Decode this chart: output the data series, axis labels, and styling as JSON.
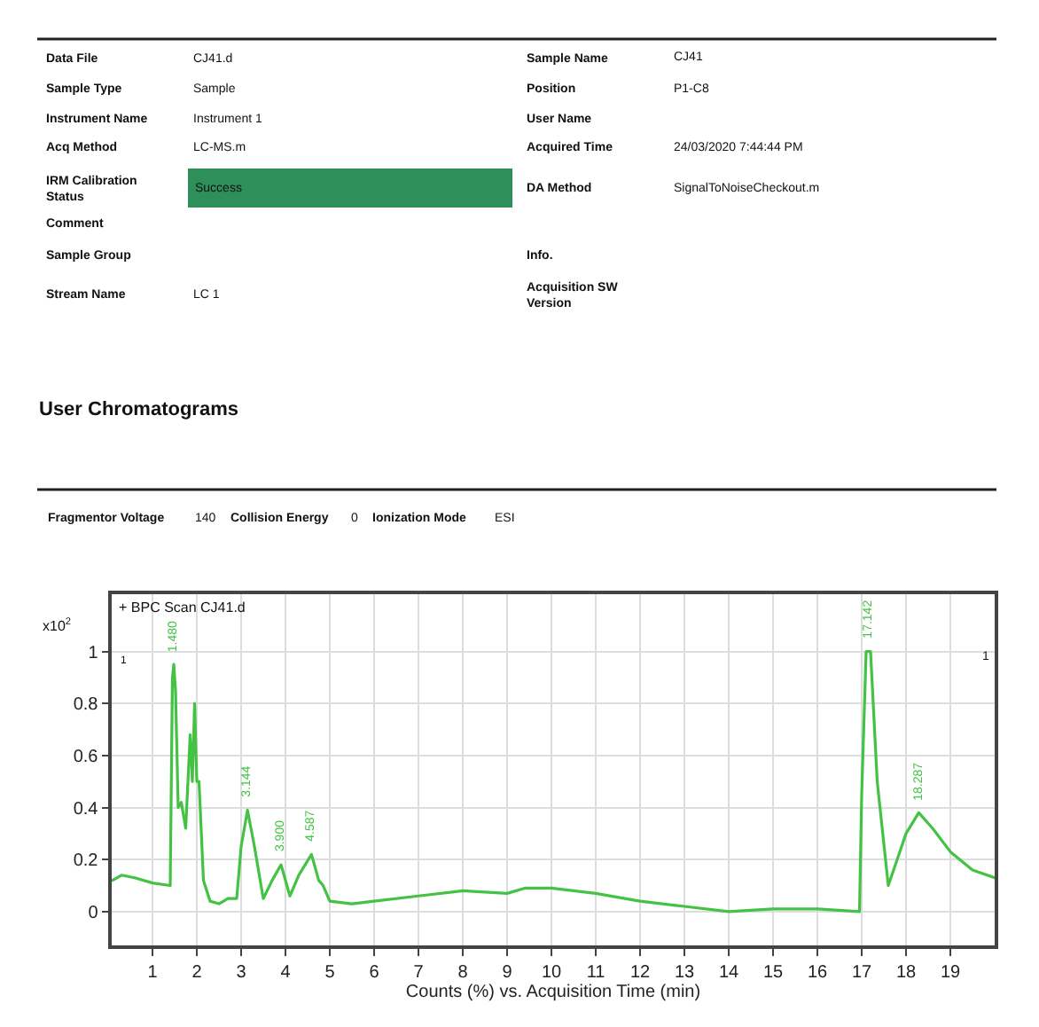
{
  "chart_data": {
    "type": "line",
    "title": "+ BPC Scan CJ41.d",
    "xlabel": "Counts (%) vs. Acquisition Time (min)",
    "annotations": [
      "Data File",
      "CJ41.d",
      "Sample Name",
      "CJ41",
      "Sample Type",
      "Sample",
      "Position",
      "P1-C8",
      "Instrument Name",
      "Instrument 1",
      "User Name",
      "Acq Method",
      "LC-MS.m",
      "Acquired Time",
      "24/03/2020 7:44:44 PM",
      "IRM Calibration Status",
      "Success",
      "DA Method",
      "SignalToNoiseCheckout.m",
      "Comment",
      "Sample Group",
      "Info.",
      "Stream Name",
      "LC 1",
      "Acquisition SW Version",
      "User Chromatograms",
      "Fragmentor Voltage",
      "140",
      "Collision Energy",
      "0",
      "Ionization Mode",
      "ESI",
      "x10$^{2}$",
      "1",
      "1",
      {
        "text": "1.480",
        "x": 1.48,
        "y": 0.95
      },
      {
        "text": "3.144",
        "x": 3.144,
        "y": 0.39
      },
      {
        "text": "3.900",
        "x": 3.9,
        "y": 0.18
      },
      {
        "text": "4.587",
        "x": 4.587,
        "y": 0.22
      },
      {
        "text": "17.142",
        "x": 17.142,
        "y": 1.0
      },
      {
        "text": "18.287",
        "x": 18.287,
        "y": 0.38
      }
    ],
    "x": [
      0.1,
      0.3,
      0.6,
      1.0,
      1.4,
      1.45,
      1.48,
      1.52,
      1.58,
      1.65,
      1.75,
      1.85,
      1.9,
      1.95,
      2.0,
      2.05,
      2.15,
      2.3,
      2.5,
      2.7,
      2.9,
      3.0,
      3.144,
      3.3,
      3.5,
      3.7,
      3.9,
      4.1,
      4.3,
      4.587,
      4.75,
      4.85,
      5.0,
      5.5,
      6,
      7,
      8,
      9,
      9.4,
      10,
      11,
      12,
      13,
      14,
      15,
      16,
      16.95,
      17.0,
      17.1,
      17.2,
      17.35,
      17.6,
      17.8,
      18.0,
      18.287,
      18.6,
      19,
      19.5,
      20
    ],
    "series": [
      {
        "color": "#44c244",
        "values": [
          0.12,
          0.14,
          0.13,
          0.11,
          0.1,
          0.9,
          0.95,
          0.85,
          0.4,
          0.42,
          0.32,
          0.68,
          0.5,
          0.8,
          0.5,
          0.5,
          0.12,
          0.04,
          0.03,
          0.05,
          0.05,
          0.25,
          0.39,
          0.25,
          0.05,
          0.12,
          0.18,
          0.06,
          0.14,
          0.22,
          0.12,
          0.1,
          0.04,
          0.03,
          0.04,
          0.06,
          0.08,
          0.07,
          0.09,
          0.09,
          0.07,
          0.04,
          0.02,
          0.0,
          0.01,
          0.01,
          0.0,
          0.45,
          1.0,
          1.0,
          0.5,
          0.1,
          0.2,
          0.3,
          0.38,
          0.32,
          0.23,
          0.16,
          0.13
        ]
      }
    ],
    "xlim": [
      0.08,
      20
    ],
    "xticks": [
      1,
      2,
      3,
      4,
      5,
      6,
      7,
      8,
      9,
      10,
      11,
      12,
      13,
      14,
      15,
      16,
      17,
      18,
      19
    ],
    "ylim": [
      -0.13,
      1.22
    ],
    "yticks": [
      0,
      0.2,
      0.4,
      0.6,
      0.8,
      1
    ],
    "grid": true,
    "marker": "none",
    "line_style": "solid"
  }
}
